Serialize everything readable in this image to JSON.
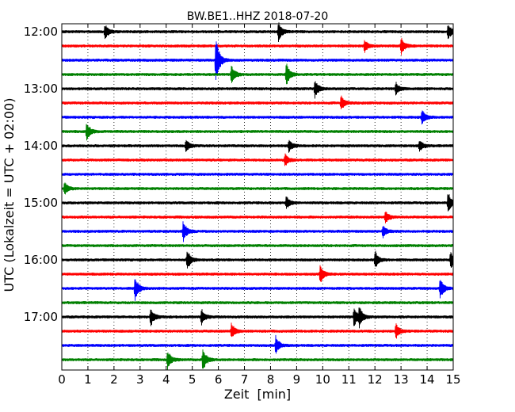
{
  "chart_data": {
    "type": "line",
    "title": "BW.BE1..HHZ 2018-07-20",
    "xlabel": "Zeit  [min]",
    "ylabel": "UTC (Lokalzeit = UTC + 02:00)",
    "xlim": [
      0,
      15
    ],
    "x_ticks": [
      "0",
      "1",
      "2",
      "3",
      "4",
      "5",
      "6",
      "7",
      "8",
      "9",
      "10",
      "11",
      "12",
      "13",
      "14",
      "15"
    ],
    "y_ticks": [
      "12:00",
      "13:00",
      "14:00",
      "15:00",
      "16:00",
      "17:00"
    ],
    "grid": "vertical dotted lines at each minute",
    "trace_colors": [
      "#000000",
      "#ff0000",
      "#0000ff",
      "#008000"
    ],
    "series": [
      {
        "start": "12:00",
        "color": "#000000",
        "events": [
          {
            "t": 1.65,
            "amp": 0.5
          },
          {
            "t": 8.3,
            "amp": 0.6
          },
          {
            "t": 14.8,
            "amp": 0.5
          }
        ]
      },
      {
        "start": "12:15",
        "color": "#ff0000",
        "events": [
          {
            "t": 11.6,
            "amp": 0.4
          },
          {
            "t": 13.0,
            "amp": 0.6
          }
        ]
      },
      {
        "start": "12:30",
        "color": "#0000ff",
        "events": [
          {
            "t": 5.9,
            "amp": 1.6
          }
        ]
      },
      {
        "start": "12:45",
        "color": "#008000",
        "events": [
          {
            "t": 6.5,
            "amp": 0.6
          },
          {
            "t": 8.6,
            "amp": 0.8
          }
        ]
      },
      {
        "start": "13:00",
        "color": "#000000",
        "events": [
          {
            "t": 9.7,
            "amp": 0.6
          },
          {
            "t": 12.8,
            "amp": 0.4
          }
        ]
      },
      {
        "start": "13:15",
        "color": "#ff0000",
        "events": [
          {
            "t": 10.7,
            "amp": 0.5
          }
        ]
      },
      {
        "start": "13:30",
        "color": "#0000ff",
        "events": [
          {
            "t": 13.8,
            "amp": 0.5
          }
        ]
      },
      {
        "start": "13:45",
        "color": "#008000",
        "events": [
          {
            "t": 0.95,
            "amp": 0.6
          }
        ]
      },
      {
        "start": "14:00",
        "color": "#000000",
        "events": [
          {
            "t": 4.75,
            "amp": 0.4
          },
          {
            "t": 8.7,
            "amp": 0.4
          },
          {
            "t": 13.7,
            "amp": 0.4
          }
        ]
      },
      {
        "start": "14:15",
        "color": "#ff0000",
        "events": [
          {
            "t": 8.55,
            "amp": 0.4
          }
        ]
      },
      {
        "start": "14:30",
        "color": "#0000ff",
        "events": []
      },
      {
        "start": "14:45",
        "color": "#008000",
        "events": [
          {
            "t": 0.1,
            "amp": 0.4
          }
        ]
      },
      {
        "start": "15:00",
        "color": "#000000",
        "events": [
          {
            "t": 8.6,
            "amp": 0.4
          },
          {
            "t": 14.8,
            "amp": 0.7
          }
        ]
      },
      {
        "start": "15:15",
        "color": "#ff0000",
        "events": [
          {
            "t": 12.4,
            "amp": 0.4
          }
        ]
      },
      {
        "start": "15:30",
        "color": "#0000ff",
        "events": [
          {
            "t": 4.65,
            "amp": 0.7
          },
          {
            "t": 12.3,
            "amp": 0.4
          }
        ]
      },
      {
        "start": "15:45",
        "color": "#008000",
        "events": []
      },
      {
        "start": "16:00",
        "color": "#000000",
        "events": [
          {
            "t": 4.8,
            "amp": 0.7
          },
          {
            "t": 12.0,
            "amp": 0.6
          },
          {
            "t": 14.9,
            "amp": 0.6
          }
        ]
      },
      {
        "start": "16:15",
        "color": "#ff0000",
        "events": [
          {
            "t": 9.9,
            "amp": 0.6
          }
        ]
      },
      {
        "start": "16:30",
        "color": "#0000ff",
        "events": [
          {
            "t": 2.8,
            "amp": 0.8
          },
          {
            "t": 14.5,
            "amp": 0.7
          }
        ]
      },
      {
        "start": "16:45",
        "color": "#008000",
        "events": []
      },
      {
        "start": "17:00",
        "color": "#000000",
        "events": [
          {
            "t": 3.4,
            "amp": 0.6
          },
          {
            "t": 5.35,
            "amp": 0.5
          },
          {
            "t": 11.2,
            "amp": 0.7
          },
          {
            "t": 11.4,
            "amp": 0.6
          }
        ]
      },
      {
        "start": "17:15",
        "color": "#ff0000",
        "events": [
          {
            "t": 6.5,
            "amp": 0.5
          },
          {
            "t": 12.8,
            "amp": 0.5
          }
        ]
      },
      {
        "start": "17:30",
        "color": "#0000ff",
        "events": [
          {
            "t": 8.2,
            "amp": 0.6
          }
        ]
      },
      {
        "start": "17:45",
        "color": "#008000",
        "events": [
          {
            "t": 4.05,
            "amp": 0.6
          },
          {
            "t": 5.4,
            "amp": 0.8
          }
        ]
      }
    ]
  }
}
